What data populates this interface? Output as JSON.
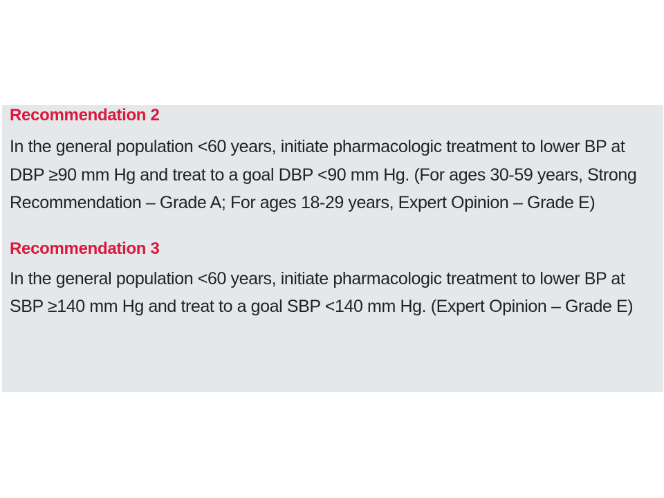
{
  "recommendations": [
    {
      "title": "Recommendation 2",
      "body": "In the general population <60 years, initiate pharmacologic treatment to lower BP at DBP ≥90 mm Hg and treat to a goal DBP <90 mm Hg. (For ages 30-59 years, Strong Recommendation – Grade A; For ages 18-29 years, Expert Opinion – Grade E)"
    },
    {
      "title": "Recommendation 3",
      "body": "In the general population <60 years, initiate pharmacologic treatment to lower BP at SBP ≥140 mm Hg and treat to a goal SBP <140 mm Hg. (Expert Opinion – Grade E)"
    }
  ],
  "colors": {
    "title": "#d9183b",
    "body": "#222222",
    "panel_background": "#e4e8eb",
    "page_background": "#ffffff"
  }
}
